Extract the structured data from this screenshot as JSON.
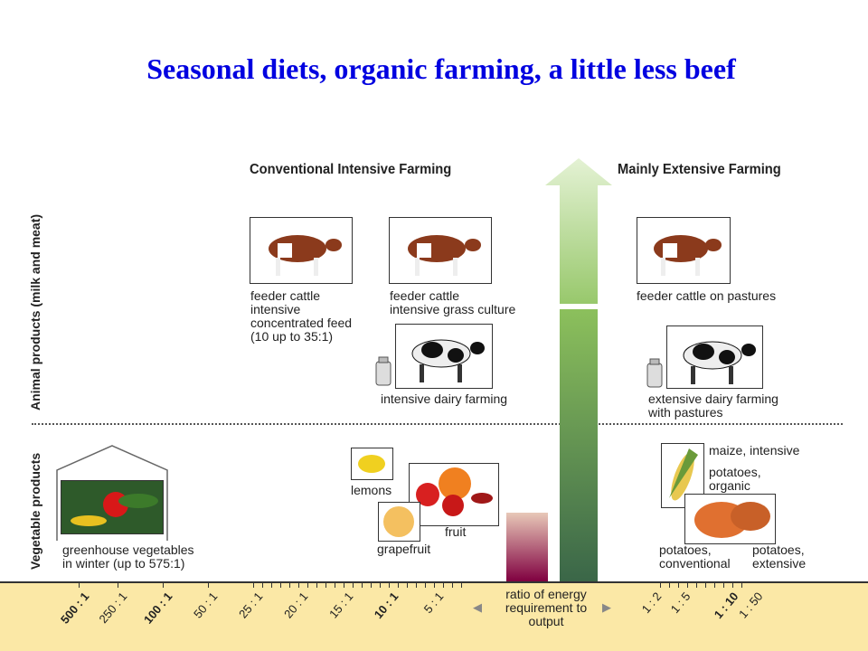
{
  "title": "Seasonal diets, organic farming, a little less beef",
  "headers": {
    "left": "Conventional Intensive Farming",
    "right": "Mainly Extensive Farming"
  },
  "row_labels": {
    "animal": "Animal products (milk and meat)",
    "vegetable": "Vegetable products"
  },
  "captions": {
    "feeder_intensive_feed": "feeder cattle\nintensive\nconcentrated feed\n(10 up to 35:1)",
    "feeder_grass": "feeder cattle\nintensive grass culture",
    "dairy_intensive": "intensive dairy farming",
    "feeder_pastures": "feeder cattle on pastures",
    "dairy_extensive": "extensive dairy farming\nwith pastures",
    "greenhouse": "greenhouse vegetables\nin winter (up to 575:1)",
    "lemons": "lemons",
    "fruit": "fruit",
    "grapefruit": "grapefruit",
    "maize": "maize, intensive",
    "potatoes_organic": "potatoes,\norganic",
    "potatoes_conventional": "potatoes,\nconventional",
    "potatoes_extensive": "potatoes,\nextensive"
  },
  "axis": {
    "label": "ratio of energy\nrequirement to\noutput",
    "ticks": [
      {
        "t": "500 : 1",
        "bold": true
      },
      {
        "t": "250 : 1",
        "bold": false
      },
      {
        "t": "100 : 1",
        "bold": true
      },
      {
        "t": "50 : 1",
        "bold": false
      },
      {
        "t": "25 : 1",
        "bold": false
      },
      {
        "t": "20 : 1",
        "bold": false
      },
      {
        "t": "15 : 1",
        "bold": false
      },
      {
        "t": "10 : 1",
        "bold": true
      },
      {
        "t": "5 : 1",
        "bold": false
      },
      {
        "t": "1 : 2",
        "bold": false
      },
      {
        "t": "1 : 5",
        "bold": false
      },
      {
        "t": "1 : 10",
        "bold": true
      },
      {
        "t": "1 : 50",
        "bold": false
      }
    ]
  },
  "colors": {
    "title": "#0000e0",
    "axis_band": "#fbe8a6",
    "arrow_light": "#a8d080",
    "arrow_dark": "#3f6e4a",
    "input_bar": "#800040"
  }
}
